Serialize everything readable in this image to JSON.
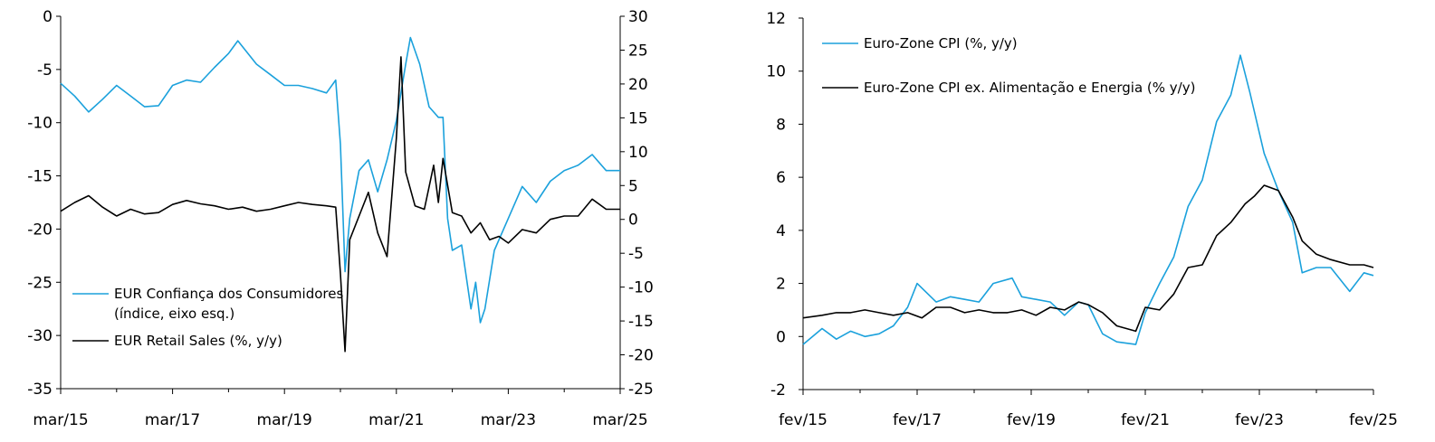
{
  "chart_data": [
    {
      "type": "line",
      "title": "",
      "xlabel": "",
      "ylabel": "",
      "x_range": [
        "2015-03",
        "2025-03"
      ],
      "ylim": [
        -35,
        0
      ],
      "y2lim": [
        -25,
        30
      ],
      "yticks": [
        "0",
        "-5",
        "-10",
        "-15",
        "-20",
        "-25",
        "-30",
        "-35"
      ],
      "y2ticks": [
        "30",
        "25",
        "20",
        "15",
        "10",
        "5",
        "0",
        "-5",
        "-10",
        "-15",
        "-20",
        "-25"
      ],
      "xticks": [
        "mar/15",
        "mar/17",
        "mar/19",
        "mar/21",
        "mar/23",
        "mar/25"
      ],
      "grid": false,
      "legend_position": "bottom-left",
      "series": [
        {
          "name": "EUR Confiança dos Consumidores (índice, eixo esq.)",
          "legend_lines": [
            "EUR Confiança dos Consumidores",
            "(índice, eixo esq.)"
          ],
          "axis": "left",
          "color": "#1ba1dc",
          "points": [
            [
              "2015-03",
              -6.3
            ],
            [
              "2015-06",
              -7.5
            ],
            [
              "2015-09",
              -9.0
            ],
            [
              "2015-12",
              -7.8
            ],
            [
              "2016-03",
              -6.5
            ],
            [
              "2016-06",
              -7.5
            ],
            [
              "2016-09",
              -8.5
            ],
            [
              "2016-12",
              -8.4
            ],
            [
              "2017-03",
              -6.5
            ],
            [
              "2017-06",
              -6.0
            ],
            [
              "2017-09",
              -6.2
            ],
            [
              "2017-12",
              -4.8
            ],
            [
              "2018-03",
              -3.5
            ],
            [
              "2018-05",
              -2.3
            ],
            [
              "2018-09",
              -4.5
            ],
            [
              "2018-12",
              -5.5
            ],
            [
              "2019-03",
              -6.5
            ],
            [
              "2019-06",
              -6.5
            ],
            [
              "2019-09",
              -6.8
            ],
            [
              "2019-12",
              -7.2
            ],
            [
              "2020-02",
              -6.0
            ],
            [
              "2020-03",
              -12.0
            ],
            [
              "2020-04",
              -24.0
            ],
            [
              "2020-05",
              -19.0
            ],
            [
              "2020-07",
              -14.5
            ],
            [
              "2020-09",
              -13.5
            ],
            [
              "2020-11",
              -16.5
            ],
            [
              "2021-01",
              -13.5
            ],
            [
              "2021-03",
              -9.8
            ],
            [
              "2021-05",
              -4.5
            ],
            [
              "2021-06",
              -2.0
            ],
            [
              "2021-08",
              -4.5
            ],
            [
              "2021-10",
              -8.5
            ],
            [
              "2021-12",
              -9.5
            ],
            [
              "2022-01",
              -9.5
            ],
            [
              "2022-02",
              -19.0
            ],
            [
              "2022-03",
              -22.0
            ],
            [
              "2022-05",
              -21.5
            ],
            [
              "2022-07",
              -27.5
            ],
            [
              "2022-08",
              -25.0
            ],
            [
              "2022-09",
              -28.8
            ],
            [
              "2022-10",
              -27.5
            ],
            [
              "2022-12",
              -22.0
            ],
            [
              "2023-03",
              -19.0
            ],
            [
              "2023-06",
              -16.0
            ],
            [
              "2023-09",
              -17.5
            ],
            [
              "2023-12",
              -15.5
            ],
            [
              "2024-03",
              -14.5
            ],
            [
              "2024-06",
              -14.0
            ],
            [
              "2024-09",
              -13.0
            ],
            [
              "2024-12",
              -14.5
            ],
            [
              "2025-03",
              -14.5
            ]
          ]
        },
        {
          "name": "EUR Retail Sales (%, y/y)",
          "legend_lines": [
            "EUR Retail Sales (%, y/y)"
          ],
          "axis": "right",
          "color": "#000000",
          "points": [
            [
              "2015-03",
              1.2
            ],
            [
              "2015-06",
              2.5
            ],
            [
              "2015-09",
              3.5
            ],
            [
              "2015-12",
              1.8
            ],
            [
              "2016-03",
              0.5
            ],
            [
              "2016-06",
              1.5
            ],
            [
              "2016-09",
              0.8
            ],
            [
              "2016-12",
              1.0
            ],
            [
              "2017-03",
              2.2
            ],
            [
              "2017-06",
              2.8
            ],
            [
              "2017-09",
              2.3
            ],
            [
              "2017-12",
              2.0
            ],
            [
              "2018-03",
              1.5
            ],
            [
              "2018-06",
              1.8
            ],
            [
              "2018-09",
              1.2
            ],
            [
              "2018-12",
              1.5
            ],
            [
              "2019-03",
              2.0
            ],
            [
              "2019-06",
              2.5
            ],
            [
              "2019-09",
              2.2
            ],
            [
              "2019-12",
              2.0
            ],
            [
              "2020-02",
              1.8
            ],
            [
              "2020-03",
              -8.0
            ],
            [
              "2020-04",
              -19.5
            ],
            [
              "2020-05",
              -3.0
            ],
            [
              "2020-07",
              0.5
            ],
            [
              "2020-09",
              4.0
            ],
            [
              "2020-11",
              -2.0
            ],
            [
              "2021-01",
              -5.5
            ],
            [
              "2021-03",
              12.0
            ],
            [
              "2021-04",
              24.0
            ],
            [
              "2021-05",
              7.0
            ],
            [
              "2021-07",
              2.0
            ],
            [
              "2021-09",
              1.5
            ],
            [
              "2021-11",
              8.0
            ],
            [
              "2021-12",
              2.5
            ],
            [
              "2022-01",
              9.0
            ],
            [
              "2022-03",
              1.0
            ],
            [
              "2022-05",
              0.5
            ],
            [
              "2022-07",
              -2.0
            ],
            [
              "2022-09",
              -0.5
            ],
            [
              "2022-11",
              -3.0
            ],
            [
              "2023-01",
              -2.5
            ],
            [
              "2023-03",
              -3.5
            ],
            [
              "2023-06",
              -1.5
            ],
            [
              "2023-09",
              -2.0
            ],
            [
              "2023-12",
              0.0
            ],
            [
              "2024-03",
              0.5
            ],
            [
              "2024-06",
              0.5
            ],
            [
              "2024-09",
              3.0
            ],
            [
              "2024-12",
              1.5
            ],
            [
              "2025-03",
              1.5
            ]
          ]
        }
      ]
    },
    {
      "type": "line",
      "title": "",
      "xlabel": "",
      "ylabel": "",
      "x_range": [
        "2015-02",
        "2025-02"
      ],
      "ylim": [
        -2,
        12
      ],
      "yticks": [
        "12",
        "10",
        "8",
        "6",
        "4",
        "2",
        "0",
        "-2"
      ],
      "xticks": [
        "fev/15",
        "fev/17",
        "fev/19",
        "fev/21",
        "fev/23",
        "fev/25"
      ],
      "grid": false,
      "legend_position": "top-left",
      "series": [
        {
          "name": "Euro-Zone CPI (%, y/y)",
          "legend_lines": [
            "Euro-Zone CPI (%, y/y)"
          ],
          "axis": "left",
          "color": "#1ba1dc",
          "points": [
            [
              "2015-02",
              -0.3
            ],
            [
              "2015-06",
              0.3
            ],
            [
              "2015-09",
              -0.1
            ],
            [
              "2015-12",
              0.2
            ],
            [
              "2016-03",
              0.0
            ],
            [
              "2016-06",
              0.1
            ],
            [
              "2016-09",
              0.4
            ],
            [
              "2016-12",
              1.1
            ],
            [
              "2017-02",
              2.0
            ],
            [
              "2017-06",
              1.3
            ],
            [
              "2017-09",
              1.5
            ],
            [
              "2017-12",
              1.4
            ],
            [
              "2018-03",
              1.3
            ],
            [
              "2018-06",
              2.0
            ],
            [
              "2018-10",
              2.2
            ],
            [
              "2018-12",
              1.5
            ],
            [
              "2019-03",
              1.4
            ],
            [
              "2019-06",
              1.3
            ],
            [
              "2019-09",
              0.8
            ],
            [
              "2019-12",
              1.3
            ],
            [
              "2020-02",
              1.2
            ],
            [
              "2020-05",
              0.1
            ],
            [
              "2020-08",
              -0.2
            ],
            [
              "2020-12",
              -0.3
            ],
            [
              "2021-02",
              0.9
            ],
            [
              "2021-05",
              2.0
            ],
            [
              "2021-08",
              3.0
            ],
            [
              "2021-11",
              4.9
            ],
            [
              "2022-02",
              5.9
            ],
            [
              "2022-05",
              8.1
            ],
            [
              "2022-08",
              9.1
            ],
            [
              "2022-10",
              10.6
            ],
            [
              "2022-12",
              9.2
            ],
            [
              "2023-03",
              6.9
            ],
            [
              "2023-06",
              5.5
            ],
            [
              "2023-09",
              4.3
            ],
            [
              "2023-11",
              2.4
            ],
            [
              "2024-02",
              2.6
            ],
            [
              "2024-05",
              2.6
            ],
            [
              "2024-09",
              1.7
            ],
            [
              "2024-12",
              2.4
            ],
            [
              "2025-02",
              2.3
            ]
          ]
        },
        {
          "name": "Euro-Zone CPI ex. Alimentação e Energia (% y/y)",
          "legend_lines": [
            "Euro-Zone CPI ex. Alimentação e Energia (% y/y)"
          ],
          "axis": "left",
          "color": "#000000",
          "points": [
            [
              "2015-02",
              0.7
            ],
            [
              "2015-06",
              0.8
            ],
            [
              "2015-09",
              0.9
            ],
            [
              "2015-12",
              0.9
            ],
            [
              "2016-03",
              1.0
            ],
            [
              "2016-06",
              0.9
            ],
            [
              "2016-09",
              0.8
            ],
            [
              "2016-12",
              0.9
            ],
            [
              "2017-03",
              0.7
            ],
            [
              "2017-06",
              1.1
            ],
            [
              "2017-09",
              1.1
            ],
            [
              "2017-12",
              0.9
            ],
            [
              "2018-03",
              1.0
            ],
            [
              "2018-06",
              0.9
            ],
            [
              "2018-09",
              0.9
            ],
            [
              "2018-12",
              1.0
            ],
            [
              "2019-03",
              0.8
            ],
            [
              "2019-06",
              1.1
            ],
            [
              "2019-09",
              1.0
            ],
            [
              "2019-12",
              1.3
            ],
            [
              "2020-02",
              1.2
            ],
            [
              "2020-05",
              0.9
            ],
            [
              "2020-08",
              0.4
            ],
            [
              "2020-12",
              0.2
            ],
            [
              "2021-02",
              1.1
            ],
            [
              "2021-05",
              1.0
            ],
            [
              "2021-08",
              1.6
            ],
            [
              "2021-11",
              2.6
            ],
            [
              "2022-02",
              2.7
            ],
            [
              "2022-05",
              3.8
            ],
            [
              "2022-08",
              4.3
            ],
            [
              "2022-11",
              5.0
            ],
            [
              "2023-01",
              5.3
            ],
            [
              "2023-03",
              5.7
            ],
            [
              "2023-06",
              5.5
            ],
            [
              "2023-09",
              4.5
            ],
            [
              "2023-11",
              3.6
            ],
            [
              "2024-02",
              3.1
            ],
            [
              "2024-05",
              2.9
            ],
            [
              "2024-09",
              2.7
            ],
            [
              "2024-12",
              2.7
            ],
            [
              "2025-02",
              2.6
            ]
          ]
        }
      ]
    }
  ]
}
